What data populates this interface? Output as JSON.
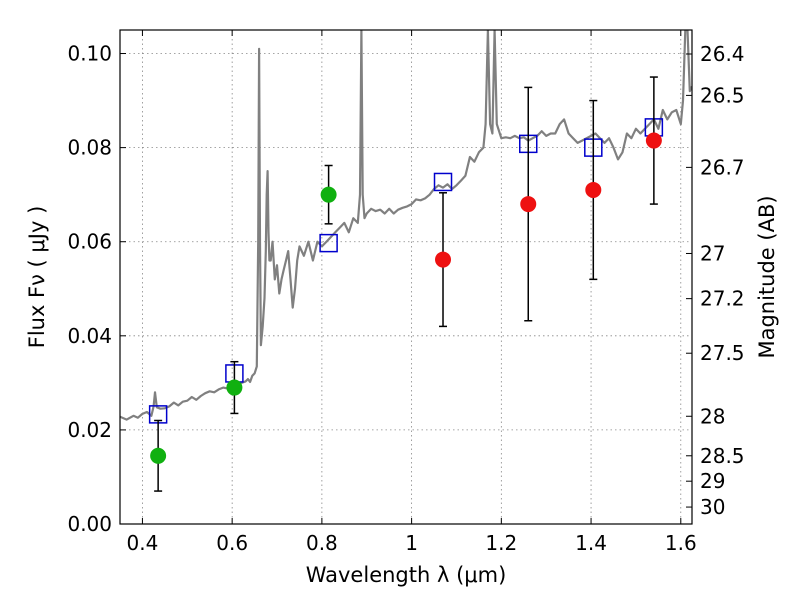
{
  "chart_data": {
    "type": "scatter",
    "xlabel": "Wavelength  λ (μm)",
    "ylabel": "Flux  Fν ( μJy )",
    "y2label": "Magnitude (AB)",
    "xlim": [
      0.35,
      1.625
    ],
    "ylim": [
      0.0,
      0.105
    ],
    "grid": true,
    "x_ticks": [
      0.4,
      0.6,
      0.8,
      1.0,
      1.2,
      1.4,
      1.6
    ],
    "x_tick_labels": [
      "0.4",
      "0.6",
      "0.8",
      "1",
      "1.2",
      "1.4",
      "1.6"
    ],
    "y_ticks": [
      0.0,
      0.02,
      0.04,
      0.06,
      0.08,
      0.1
    ],
    "y_tick_labels": [
      "0.00",
      "0.02",
      "0.04",
      "0.06",
      "0.08",
      "0.10"
    ],
    "y2_ticks": [
      {
        "label": "26.4",
        "flux": 0.0999
      },
      {
        "label": "26.5",
        "flux": 0.0911
      },
      {
        "label": "26.7",
        "flux": 0.0758
      },
      {
        "label": "27",
        "flux": 0.0575
      },
      {
        "label": "27.2",
        "flux": 0.0479
      },
      {
        "label": "27.5",
        "flux": 0.0363
      },
      {
        "label": "28",
        "flux": 0.0229
      },
      {
        "label": "28.5",
        "flux": 0.0145
      },
      {
        "label": "29",
        "flux": 0.0091
      },
      {
        "label": "30",
        "flux": 0.0036
      }
    ],
    "colors": {
      "template": "#808080",
      "model_box": "#0000cc",
      "green_point": "#10b010",
      "red_point": "#ee1111",
      "errorbar": "#000000",
      "grid": "#888888"
    },
    "series": [
      {
        "type": "line",
        "style": "spectrum",
        "points": [
          [
            0.35,
            0.0228
          ],
          [
            0.365,
            0.0222
          ],
          [
            0.38,
            0.023
          ],
          [
            0.39,
            0.0226
          ],
          [
            0.4,
            0.0234
          ],
          [
            0.41,
            0.0238
          ],
          [
            0.42,
            0.023
          ],
          [
            0.425,
            0.025
          ],
          [
            0.428,
            0.028
          ],
          [
            0.432,
            0.0248
          ],
          [
            0.44,
            0.0245
          ],
          [
            0.45,
            0.0246
          ],
          [
            0.46,
            0.025
          ],
          [
            0.47,
            0.0258
          ],
          [
            0.48,
            0.0252
          ],
          [
            0.49,
            0.026
          ],
          [
            0.5,
            0.0262
          ],
          [
            0.51,
            0.027
          ],
          [
            0.52,
            0.0264
          ],
          [
            0.53,
            0.0272
          ],
          [
            0.54,
            0.0278
          ],
          [
            0.55,
            0.0282
          ],
          [
            0.56,
            0.028
          ],
          [
            0.57,
            0.0286
          ],
          [
            0.58,
            0.029
          ],
          [
            0.59,
            0.0288
          ],
          [
            0.6,
            0.0292
          ],
          [
            0.61,
            0.0294
          ],
          [
            0.62,
            0.03
          ],
          [
            0.63,
            0.0303
          ],
          [
            0.635,
            0.0308
          ],
          [
            0.64,
            0.0302
          ],
          [
            0.645,
            0.0315
          ],
          [
            0.65,
            0.032
          ],
          [
            0.655,
            0.0335
          ],
          [
            0.658,
            0.06
          ],
          [
            0.66,
            0.101
          ],
          [
            0.662,
            0.06
          ],
          [
            0.664,
            0.038
          ],
          [
            0.668,
            0.042
          ],
          [
            0.672,
            0.048
          ],
          [
            0.675,
            0.058
          ],
          [
            0.677,
            0.07
          ],
          [
            0.679,
            0.075
          ],
          [
            0.681,
            0.062
          ],
          [
            0.683,
            0.056
          ],
          [
            0.686,
            0.056
          ],
          [
            0.69,
            0.06
          ],
          [
            0.695,
            0.052
          ],
          [
            0.7,
            0.055
          ],
          [
            0.705,
            0.049
          ],
          [
            0.71,
            0.052
          ],
          [
            0.715,
            0.054
          ],
          [
            0.72,
            0.056
          ],
          [
            0.725,
            0.058
          ],
          [
            0.73,
            0.052
          ],
          [
            0.735,
            0.046
          ],
          [
            0.74,
            0.05
          ],
          [
            0.745,
            0.056
          ],
          [
            0.75,
            0.059
          ],
          [
            0.76,
            0.057
          ],
          [
            0.77,
            0.06
          ],
          [
            0.78,
            0.056
          ],
          [
            0.79,
            0.06
          ],
          [
            0.8,
            0.059
          ],
          [
            0.81,
            0.06
          ],
          [
            0.82,
            0.061
          ],
          [
            0.83,
            0.062
          ],
          [
            0.84,
            0.063
          ],
          [
            0.85,
            0.064
          ],
          [
            0.86,
            0.062
          ],
          [
            0.87,
            0.065
          ],
          [
            0.88,
            0.064
          ],
          [
            0.885,
            0.07
          ],
          [
            0.888,
            0.105
          ],
          [
            0.891,
            0.07
          ],
          [
            0.895,
            0.065
          ],
          [
            0.9,
            0.066
          ],
          [
            0.91,
            0.067
          ],
          [
            0.92,
            0.0665
          ],
          [
            0.93,
            0.0668
          ],
          [
            0.94,
            0.066
          ],
          [
            0.95,
            0.067
          ],
          [
            0.96,
            0.066
          ],
          [
            0.97,
            0.0668
          ],
          [
            0.98,
            0.0672
          ],
          [
            0.99,
            0.0675
          ],
          [
            1.0,
            0.068
          ],
          [
            1.01,
            0.069
          ],
          [
            1.02,
            0.0688
          ],
          [
            1.03,
            0.0692
          ],
          [
            1.04,
            0.07
          ],
          [
            1.05,
            0.0712
          ],
          [
            1.06,
            0.072
          ],
          [
            1.07,
            0.0715
          ],
          [
            1.08,
            0.0722
          ],
          [
            1.09,
            0.0712
          ],
          [
            1.1,
            0.072
          ],
          [
            1.11,
            0.073
          ],
          [
            1.12,
            0.074
          ],
          [
            1.13,
            0.078
          ],
          [
            1.14,
            0.077
          ],
          [
            1.15,
            0.079
          ],
          [
            1.16,
            0.08
          ],
          [
            1.165,
            0.085
          ],
          [
            1.17,
            0.105
          ],
          [
            1.175,
            0.085
          ],
          [
            1.18,
            0.083
          ],
          [
            1.185,
            0.105
          ],
          [
            1.19,
            0.085
          ],
          [
            1.2,
            0.082
          ],
          [
            1.21,
            0.0822
          ],
          [
            1.22,
            0.082
          ],
          [
            1.23,
            0.0825
          ],
          [
            1.24,
            0.082
          ],
          [
            1.25,
            0.0822
          ],
          [
            1.26,
            0.0815
          ],
          [
            1.27,
            0.082
          ],
          [
            1.28,
            0.0825
          ],
          [
            1.29,
            0.0835
          ],
          [
            1.3,
            0.0825
          ],
          [
            1.31,
            0.083
          ],
          [
            1.32,
            0.083
          ],
          [
            1.33,
            0.085
          ],
          [
            1.34,
            0.086
          ],
          [
            1.35,
            0.083
          ],
          [
            1.36,
            0.082
          ],
          [
            1.37,
            0.081
          ],
          [
            1.38,
            0.0815
          ],
          [
            1.39,
            0.082
          ],
          [
            1.4,
            0.0825
          ],
          [
            1.41,
            0.083
          ],
          [
            1.42,
            0.082
          ],
          [
            1.43,
            0.081
          ],
          [
            1.44,
            0.082
          ],
          [
            1.45,
            0.08
          ],
          [
            1.46,
            0.0775
          ],
          [
            1.47,
            0.079
          ],
          [
            1.48,
            0.083
          ],
          [
            1.49,
            0.082
          ],
          [
            1.5,
            0.084
          ],
          [
            1.51,
            0.083
          ],
          [
            1.52,
            0.084
          ],
          [
            1.53,
            0.085
          ],
          [
            1.54,
            0.086
          ],
          [
            1.55,
            0.084
          ],
          [
            1.56,
            0.088
          ],
          [
            1.57,
            0.086
          ],
          [
            1.58,
            0.0875
          ],
          [
            1.59,
            0.088
          ],
          [
            1.6,
            0.085
          ],
          [
            1.605,
            0.09
          ],
          [
            1.61,
            0.105
          ],
          [
            1.615,
            0.105
          ],
          [
            1.62,
            0.092
          ],
          [
            1.625,
            0.093
          ]
        ]
      },
      {
        "type": "scatter",
        "style": "open-square",
        "x": [
          0.435,
          0.605,
          0.815,
          1.07,
          1.26,
          1.405,
          1.54
        ],
        "y": [
          0.0233,
          0.032,
          0.0597,
          0.0727,
          0.0808,
          0.08,
          0.0843
        ]
      },
      {
        "type": "scatter",
        "style": "filled-circle-green",
        "x": [
          0.435,
          0.605,
          0.815
        ],
        "y": [
          0.0145,
          0.029,
          0.07
        ],
        "yerr_low": [
          0.0075,
          0.0055,
          0.0062
        ],
        "yerr_high": [
          0.0075,
          0.0055,
          0.0062
        ]
      },
      {
        "type": "scatter",
        "style": "filled-circle-red",
        "x": [
          1.07,
          1.26,
          1.405,
          1.54
        ],
        "y": [
          0.0562,
          0.068,
          0.071,
          0.0815
        ],
        "yerr_low": [
          0.0142,
          0.0248,
          0.019,
          0.0135
        ],
        "yerr_high": [
          0.0142,
          0.0248,
          0.019,
          0.0135
        ]
      }
    ]
  }
}
